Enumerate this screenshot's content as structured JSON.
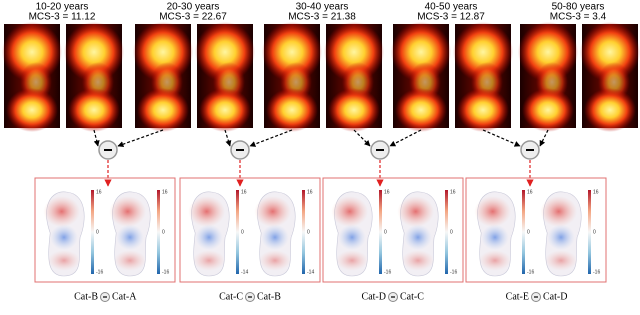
{
  "groups": [
    {
      "age": "10-20 years",
      "mcs": "MCS-3 = 11.12"
    },
    {
      "age": "20-30 years",
      "mcs": "MCS-3 = 22.67"
    },
    {
      "age": "30-40 years",
      "mcs": "MCS-3 = 21.38"
    },
    {
      "age": "40-50 years",
      "mcs": "MCS-3 = 12.87"
    },
    {
      "age": "50-80 years",
      "mcs": "MCS-3 = 3.4"
    }
  ],
  "differences": [
    {
      "minuend": "Cat-B",
      "subtrahend": "Cat-A",
      "left_ticks": [
        "16",
        "0",
        "-16"
      ],
      "right_ticks": [
        "16",
        "0",
        "-16"
      ]
    },
    {
      "minuend": "Cat-C",
      "subtrahend": "Cat-B",
      "left_ticks": [
        "16",
        "0",
        "-14"
      ],
      "right_ticks": [
        "16",
        "0",
        "-14"
      ]
    },
    {
      "minuend": "Cat-D",
      "subtrahend": "Cat-C",
      "left_ticks": [
        "16",
        "0",
        "-16"
      ],
      "right_ticks": [
        "16",
        "0",
        "-16"
      ]
    },
    {
      "minuend": "Cat-E",
      "subtrahend": "Cat-D",
      "left_ticks": [
        "16",
        "0",
        "-16"
      ],
      "right_ticks": [
        "16",
        "0",
        "-16"
      ]
    }
  ]
}
